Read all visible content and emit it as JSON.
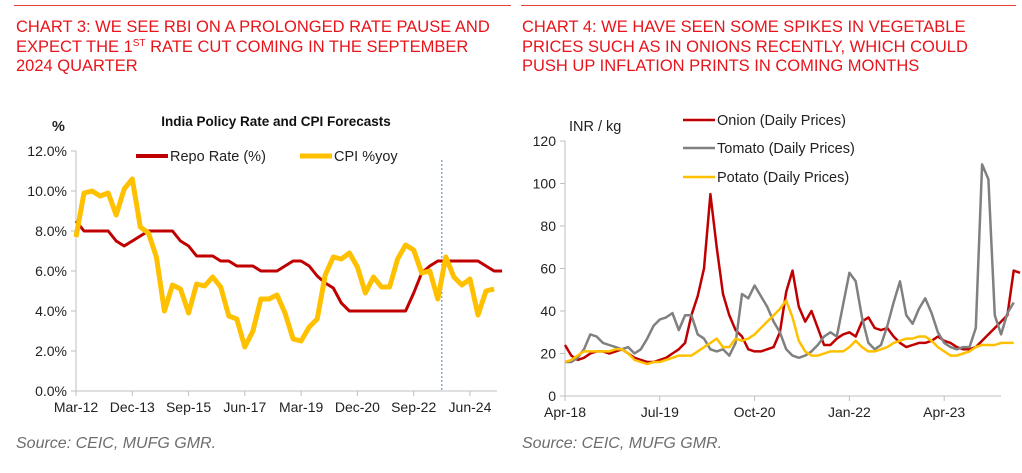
{
  "panels": [
    {
      "heading_parts": [
        "CHART 3: WE SEE RBI ON A PROLONGED RATE PAUSE AND EXPECT THE 1",
        "ST",
        " RATE CUT COMING IN THE SEPTEMBER 2024 QUARTER"
      ],
      "source": "Source: CEIC, MUFG GMR."
    },
    {
      "heading_parts": [
        "CHART 4: WE HAVE SEEN SOME SPIKES IN VEGETABLE PRICES SUCH AS IN ONIONS RECENTLY, WHICH COULD PUSH UP INFLATION PRINTS IN COMING MONTHS"
      ],
      "source": "Source: CEIC, MUFG GMR."
    }
  ],
  "chart_data": [
    {
      "type": "line",
      "title": "India Policy Rate and CPI Forecasts",
      "ylabel": "%",
      "xlabel": "",
      "ylim": [
        0,
        12
      ],
      "yticks": [
        0,
        2,
        4,
        6,
        8,
        10,
        12
      ],
      "ytick_labels": [
        "0.0%",
        "2.0%",
        "4.0%",
        "6.0%",
        "8.0%",
        "10.0%",
        "12.0%"
      ],
      "x_frequency": "quarterly",
      "x_start": "Mar-12",
      "xtick_labels": [
        "Mar-12",
        "Dec-13",
        "Sep-15",
        "Jun-17",
        "Mar-19",
        "Dec-20",
        "Sep-22",
        "Jun-24"
      ],
      "xtick_every_n_points": 7,
      "forecast_divider_after_label": "Sep-22",
      "forecast_divider_index": 45.5,
      "grid": false,
      "legend": "top-center",
      "series": [
        {
          "name": "Repo Rate (%)",
          "color": "#c00000",
          "values": [
            8.5,
            8.0,
            8.0,
            8.0,
            8.0,
            7.5,
            7.25,
            7.5,
            7.75,
            8.0,
            8.0,
            8.0,
            8.0,
            7.5,
            7.25,
            6.75,
            6.75,
            6.75,
            6.5,
            6.5,
            6.25,
            6.25,
            6.25,
            6.0,
            6.0,
            6.0,
            6.25,
            6.5,
            6.5,
            6.25,
            5.75,
            5.4,
            5.15,
            4.4,
            4.0,
            4.0,
            4.0,
            4.0,
            4.0,
            4.0,
            4.0,
            4.0,
            4.9,
            5.9,
            6.25,
            6.5,
            6.5,
            6.5,
            6.5,
            6.5,
            6.5,
            6.25,
            6.0,
            6.0
          ]
        },
        {
          "name": "CPI %yoy",
          "color": "#ffc000",
          "values": [
            7.7,
            9.9,
            10.0,
            9.75,
            9.9,
            8.8,
            10.1,
            10.6,
            8.2,
            7.9,
            6.7,
            4.0,
            5.3,
            5.1,
            3.9,
            5.35,
            5.25,
            5.7,
            5.2,
            3.75,
            3.6,
            2.2,
            3.0,
            4.6,
            4.6,
            4.8,
            3.9,
            2.6,
            2.5,
            3.2,
            3.6,
            5.8,
            6.7,
            6.6,
            6.9,
            6.2,
            4.9,
            5.7,
            5.2,
            5.2,
            6.6,
            7.3,
            7.05,
            5.9,
            6.0,
            4.6,
            6.7,
            5.7,
            5.3,
            5.6,
            3.8,
            5.0,
            5.1
          ]
        }
      ]
    },
    {
      "type": "line",
      "title": "",
      "ylabel": "INR / kg",
      "xlabel": "",
      "ylim": [
        0,
        120
      ],
      "yticks": [
        0,
        20,
        40,
        60,
        80,
        100,
        120
      ],
      "ytick_labels": [
        "0",
        "20",
        "40",
        "60",
        "80",
        "100",
        "120"
      ],
      "x_frequency": "monthly",
      "x_start": "Apr-18",
      "xtick_labels": [
        "Apr-18",
        "Jul-19",
        "Oct-20",
        "Jan-22",
        "Apr-23"
      ],
      "xtick_every_n_points": 15,
      "grid": false,
      "legend": "top-center",
      "series": [
        {
          "name": "Onion (Daily Prices)",
          "color": "#c00000",
          "values": [
            24,
            19,
            17,
            18,
            20,
            21,
            21,
            20,
            21,
            22,
            20,
            18,
            17,
            16,
            16,
            17,
            18,
            20,
            22,
            25,
            38,
            47,
            60,
            95,
            70,
            48,
            38,
            31,
            28,
            22,
            21,
            21,
            22,
            23,
            30,
            49,
            59,
            42,
            35,
            40,
            32,
            24,
            24,
            27,
            29,
            30,
            28,
            35,
            37,
            32,
            31,
            32,
            28,
            25,
            23,
            24,
            25,
            25,
            26,
            28,
            26,
            25,
            23,
            22,
            22,
            23,
            26,
            29,
            32,
            35,
            38,
            59,
            58
          ]
        },
        {
          "name": "Tomato (Daily Prices)",
          "color": "#808080",
          "values": [
            16,
            16,
            18,
            22,
            29,
            28,
            25,
            24,
            23,
            22,
            23,
            20,
            22,
            27,
            33,
            36,
            37,
            39,
            31,
            38,
            38,
            29,
            27,
            22,
            21,
            22,
            19,
            25,
            48,
            46,
            52,
            47,
            42,
            35,
            30,
            22,
            19,
            18,
            19,
            21,
            24,
            28,
            30,
            28,
            43,
            58,
            54,
            37,
            25,
            22,
            24,
            33,
            44,
            54,
            38,
            34,
            41,
            46,
            39,
            30,
            25,
            23,
            22,
            23,
            23,
            32,
            109,
            102,
            38,
            29,
            39,
            44
          ]
        },
        {
          "name": "Potato (Daily Prices)",
          "color": "#ffc000",
          "values": [
            16,
            17,
            19,
            21,
            21,
            21,
            21,
            21,
            22,
            22,
            20,
            17,
            16,
            15,
            16,
            16,
            17,
            18,
            19,
            19,
            19,
            21,
            23,
            25,
            27,
            23,
            23,
            27,
            26,
            27,
            29,
            32,
            35,
            38,
            41,
            45,
            37,
            26,
            21,
            19,
            19,
            20,
            21,
            21,
            21,
            23,
            26,
            23,
            21,
            21,
            22,
            23,
            25,
            26,
            27,
            27,
            28,
            28,
            26,
            23,
            21,
            19,
            19,
            20,
            21,
            23,
            24,
            24,
            24,
            25,
            25,
            25
          ]
        }
      ]
    }
  ]
}
